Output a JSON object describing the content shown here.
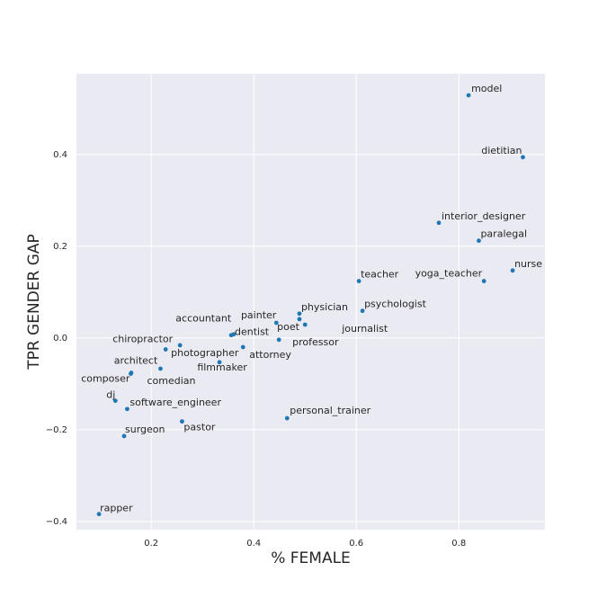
{
  "chart_data": {
    "type": "scatter",
    "xlabel": "% FEMALE",
    "ylabel": "TPR GENDER GAP",
    "color": "#1f77b4",
    "grid": true,
    "xlim": [
      0.054,
      0.968
    ],
    "ylim": [
      -0.418,
      0.576
    ],
    "xticks": [
      0.2,
      0.4,
      0.6,
      0.8
    ],
    "yticks": [
      {
        "value": -0.4,
        "label": "−0.4"
      },
      {
        "value": -0.2,
        "label": "−0.2"
      },
      {
        "value": 0,
        "label": "0.0"
      },
      0.2,
      0.4
    ],
    "labels": [
      "model",
      "dietitian",
      "interior_designer",
      "paralegal",
      "nurse",
      "yoga_teacher",
      "teacher",
      "psychologist",
      "physician",
      "painter",
      "poet",
      "journalist",
      "professor",
      "attorney",
      "accountant",
      "dentist",
      "chiropractor",
      "photographer",
      "filmmaker",
      "comedian",
      "architect",
      "composer",
      "dj",
      "software_engineer",
      "surgeon",
      "pastor",
      "personal_trainer",
      "rapper"
    ],
    "x": [
      0.819,
      0.925,
      0.761,
      0.839,
      0.905,
      0.849,
      0.605,
      0.612,
      0.489,
      0.444,
      0.489,
      0.5,
      0.449,
      0.379,
      0.356,
      0.361,
      0.228,
      0.256,
      0.333,
      0.218,
      0.161,
      0.16,
      0.13,
      0.153,
      0.147,
      0.26,
      0.465,
      0.098
    ],
    "values": [
      0.529,
      0.394,
      0.251,
      0.212,
      0.147,
      0.124,
      0.124,
      0.059,
      0.053,
      0.033,
      0.041,
      0.029,
      -0.004,
      -0.02,
      0.006,
      0.008,
      -0.025,
      -0.016,
      -0.053,
      -0.067,
      -0.076,
      -0.078,
      -0.137,
      -0.155,
      -0.214,
      -0.182,
      -0.175,
      -0.384
    ]
  }
}
